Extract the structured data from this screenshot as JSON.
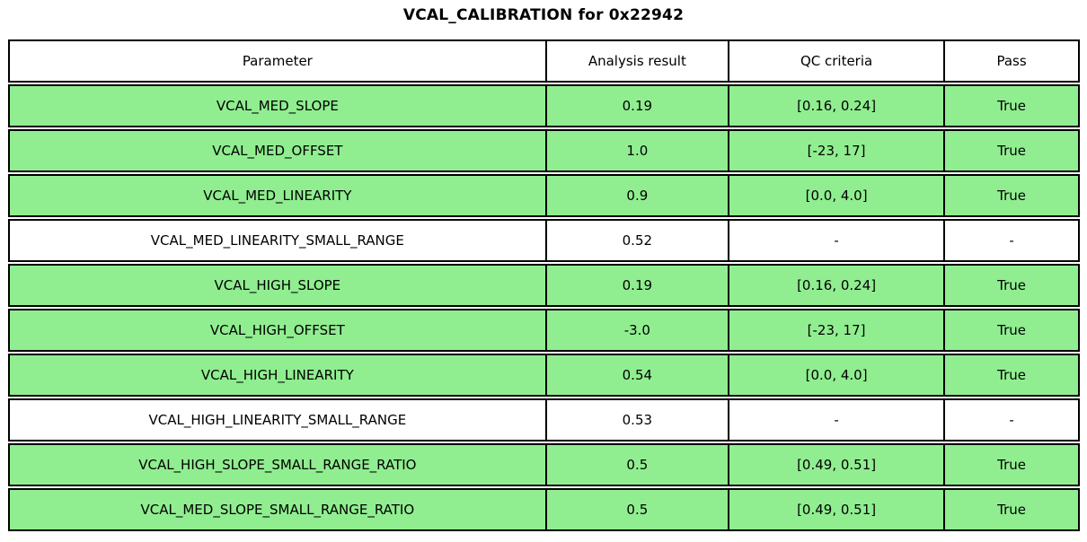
{
  "title": "VCAL_CALIBRATION for 0x22942",
  "colors": {
    "pass_row_bg": "#90ee90",
    "neutral_row_bg": "#ffffff",
    "border": "#000000"
  },
  "chart_data": {
    "type": "table",
    "title": "VCAL_CALIBRATION for 0x22942",
    "columns": [
      "Parameter",
      "Analysis result",
      "QC criteria",
      "Pass"
    ],
    "rows": [
      {
        "parameter": "VCAL_MED_SLOPE",
        "analysis_result": "0.19",
        "qc_criteria": "[0.16, 0.24]",
        "pass": "True",
        "highlighted": true
      },
      {
        "parameter": "VCAL_MED_OFFSET",
        "analysis_result": "1.0",
        "qc_criteria": "[-23, 17]",
        "pass": "True",
        "highlighted": true
      },
      {
        "parameter": "VCAL_MED_LINEARITY",
        "analysis_result": "0.9",
        "qc_criteria": "[0.0, 4.0]",
        "pass": "True",
        "highlighted": true
      },
      {
        "parameter": "VCAL_MED_LINEARITY_SMALL_RANGE",
        "analysis_result": "0.52",
        "qc_criteria": "-",
        "pass": "-",
        "highlighted": false
      },
      {
        "parameter": "VCAL_HIGH_SLOPE",
        "analysis_result": "0.19",
        "qc_criteria": "[0.16, 0.24]",
        "pass": "True",
        "highlighted": true
      },
      {
        "parameter": "VCAL_HIGH_OFFSET",
        "analysis_result": "-3.0",
        "qc_criteria": "[-23, 17]",
        "pass": "True",
        "highlighted": true
      },
      {
        "parameter": "VCAL_HIGH_LINEARITY",
        "analysis_result": "0.54",
        "qc_criteria": "[0.0, 4.0]",
        "pass": "True",
        "highlighted": true
      },
      {
        "parameter": "VCAL_HIGH_LINEARITY_SMALL_RANGE",
        "analysis_result": "0.53",
        "qc_criteria": "-",
        "pass": "-",
        "highlighted": false
      },
      {
        "parameter": "VCAL_HIGH_SLOPE_SMALL_RANGE_RATIO",
        "analysis_result": "0.5",
        "qc_criteria": "[0.49, 0.51]",
        "pass": "True",
        "highlighted": true
      },
      {
        "parameter": "VCAL_MED_SLOPE_SMALL_RANGE_RATIO",
        "analysis_result": "0.5",
        "qc_criteria": "[0.49, 0.51]",
        "pass": "True",
        "highlighted": true
      }
    ]
  }
}
